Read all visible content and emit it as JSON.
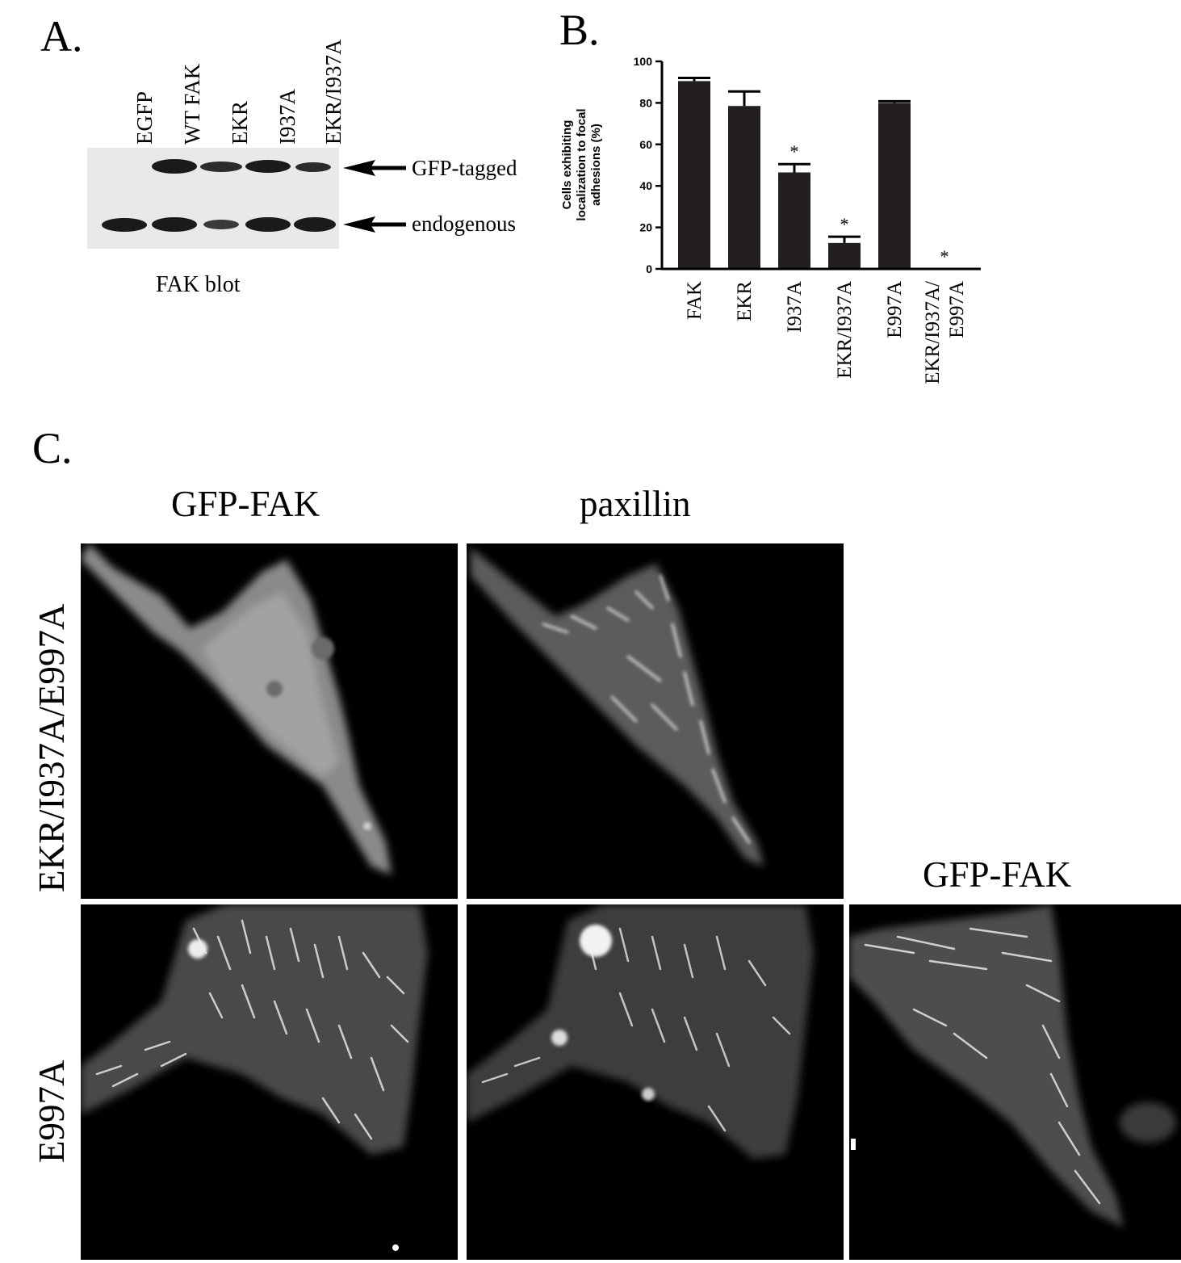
{
  "panel_a": {
    "letter": "A.",
    "lanes": [
      "EGFP",
      "WT FAK",
      "EKR",
      "I937A",
      "EKR/I937A"
    ],
    "band_labels": [
      "GFP-tagged",
      "endogenous"
    ],
    "caption": "FAK blot"
  },
  "panel_b": {
    "letter": "B.",
    "sig_marker": "*"
  },
  "chart_data": {
    "type": "bar",
    "categories": [
      "FAK",
      "EKR",
      "I937A",
      "EKR/I937A",
      "E997A",
      "EKR/I937A/ E997A"
    ],
    "category_lines": [
      [
        "FAK"
      ],
      [
        "EKR"
      ],
      [
        "I937A"
      ],
      [
        "EKR/I937A"
      ],
      [
        "E997A"
      ],
      [
        "EKR/I937A/",
        "E997A"
      ]
    ],
    "values": [
      90.5,
      78.5,
      46.5,
      12.5,
      80,
      0
    ],
    "errors": [
      1.5,
      7,
      4,
      3,
      0.8,
      0
    ],
    "significant": [
      false,
      false,
      true,
      true,
      false,
      true
    ],
    "ylabel_lines": [
      "Cells exhibiting",
      "localization to focal",
      "adhesions (%)"
    ],
    "ylim": [
      0,
      100
    ],
    "yticks": [
      0,
      20,
      40,
      60,
      80,
      100
    ],
    "bar_color": "#231f20"
  },
  "panel_c": {
    "letter": "C.",
    "column_titles": [
      "GFP-FAK",
      "paxillin"
    ],
    "extra_title": "GFP-FAK",
    "row_titles": [
      "EKR/I937A/E997A",
      "E997A"
    ]
  }
}
